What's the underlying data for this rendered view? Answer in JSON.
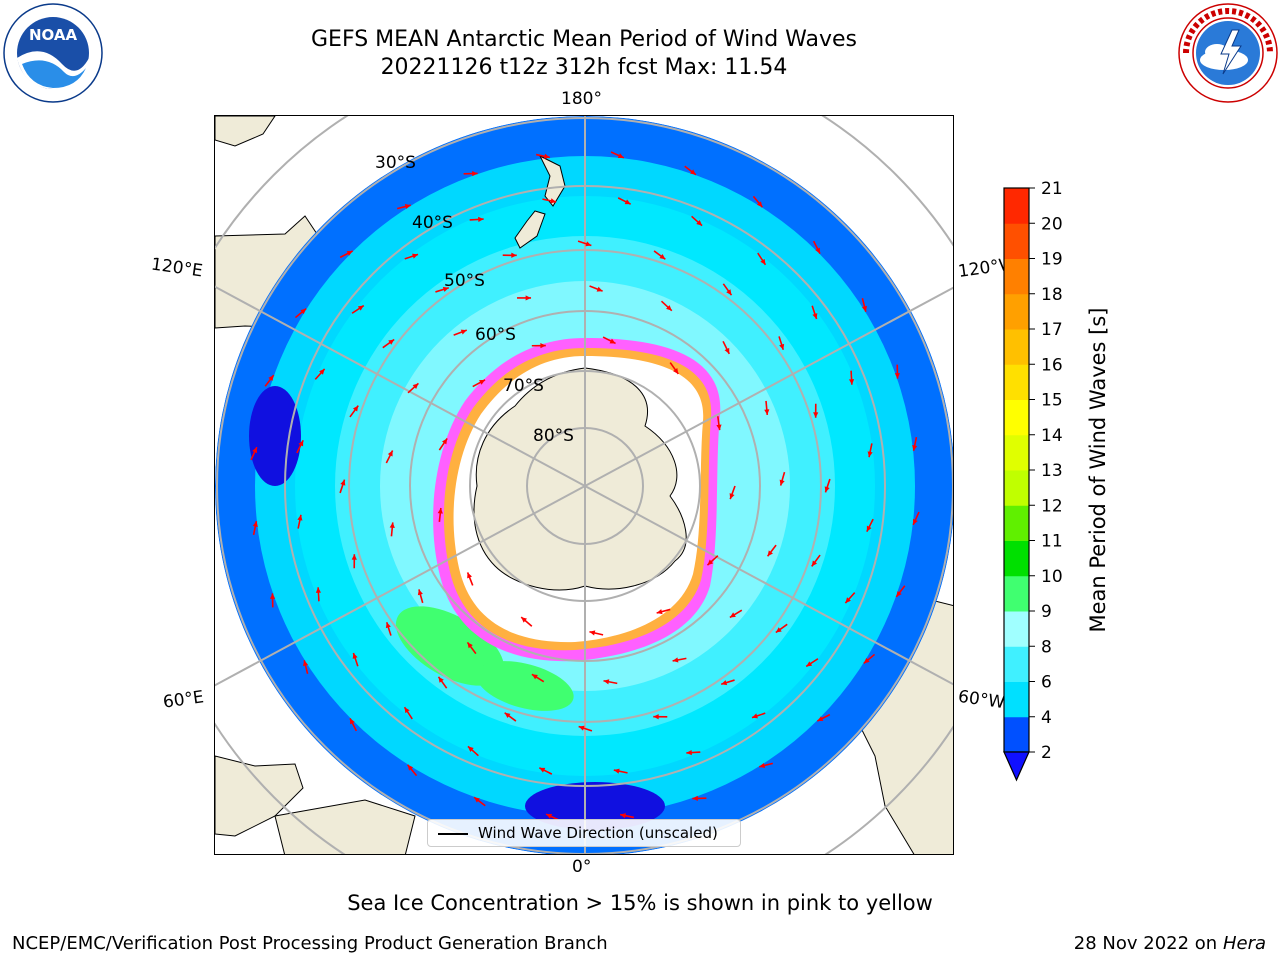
{
  "title": {
    "line1": "GEFS MEAN Antarctic Mean Period of Wind Waves",
    "line2": "20221126 t12z 312h fcst   Max: 11.54"
  },
  "logos": {
    "noaa_text": "NOAA",
    "noaa_ring": "NATIONAL OCEANIC AND ATMOSPHERIC ADMINISTRATION · U.S. DEPARTMENT OF COMMERCE",
    "nws_ring": "NATIONAL WEATHER SERVICE"
  },
  "map": {
    "projection": "south-polar-stereographic",
    "meridian_labels": {
      "top": "180°",
      "bottom": "0°",
      "upper_left": "120°E",
      "upper_right": "120°W",
      "lower_left": "60°E",
      "lower_right": "60°W"
    },
    "parallel_labels": [
      "30°S",
      "40°S",
      "50°S",
      "60°S",
      "70°S",
      "80°S"
    ]
  },
  "legend": {
    "label": "Wind Wave Direction (unscaled)"
  },
  "colorbar": {
    "title": "Mean Period of Wind Waves [s]",
    "ticks": [
      "2",
      "4",
      "6",
      "8",
      "9",
      "10",
      "11",
      "12",
      "13",
      "14",
      "15",
      "16",
      "17",
      "18",
      "19",
      "20",
      "21"
    ],
    "colors": [
      "#0050ff",
      "#00e0ff",
      "#40f0ff",
      "#a0ffff",
      "#40ff70",
      "#00e000",
      "#60f000",
      "#c0ff00",
      "#e0ff00",
      "#ffff00",
      "#ffe000",
      "#ffc000",
      "#ffa000",
      "#ff8000",
      "#ff5000",
      "#ff2800",
      "#ff0000"
    ],
    "under_color": "#1010ff"
  },
  "note": "Sea Ice Concentration > 15% is shown in pink to yellow",
  "footer": {
    "left": "NCEP/EMC/Verification Post Processing Product Generation Branch",
    "date": "28 Nov 2022 on",
    "machine": "Hera"
  }
}
